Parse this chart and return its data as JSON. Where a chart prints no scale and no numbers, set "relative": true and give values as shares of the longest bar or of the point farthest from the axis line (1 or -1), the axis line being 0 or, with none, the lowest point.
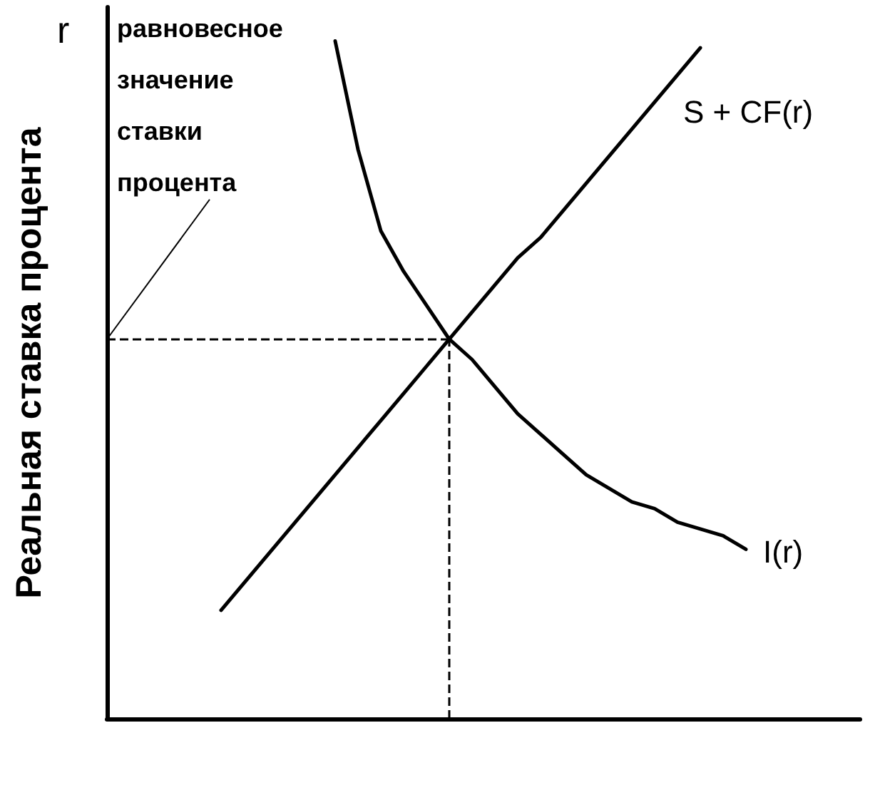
{
  "chart_data": {
    "type": "line",
    "relative": true,
    "ylabel": "Реальная ставка процента",
    "categories": [
      null,
      null,
      null,
      null,
      null,
      null,
      null,
      null,
      null,
      null,
      null,
      null,
      null,
      null,
      null,
      null,
      null,
      null,
      null,
      null,
      null,
      null,
      null,
      null,
      null,
      null,
      null,
      null,
      null,
      null,
      null,
      null,
      null,
      null
    ],
    "series": [
      {
        "name": "S + CF(r)",
        "color": "#000000",
        "values": [
          null,
          null,
          null,
          null,
          null,
          0.16,
          0.2,
          0.24,
          0.28,
          0.32,
          0.36,
          0.4,
          0.44,
          0.48,
          0.52,
          0.56,
          0.6,
          0.64,
          0.68,
          0.71,
          0.75,
          0.79,
          0.83,
          0.87,
          0.91,
          0.95,
          0.99,
          null,
          null,
          null,
          null,
          null,
          null,
          null
        ]
      },
      {
        "name": "I(r)",
        "color": "#000000",
        "values": [
          null,
          null,
          null,
          null,
          null,
          null,
          null,
          null,
          null,
          null,
          1.0,
          0.84,
          0.72,
          0.66,
          0.61,
          0.56,
          0.53,
          0.49,
          0.45,
          0.42,
          0.39,
          0.36,
          0.34,
          0.32,
          0.31,
          0.29,
          0.28,
          0.27,
          0.25,
          null,
          null,
          null,
          null,
          null
        ]
      }
    ],
    "ref_lines": [
      {
        "axis": "y",
        "value": 0.56,
        "line_style": "dashed"
      }
    ],
    "annotations": [
      "r",
      "равновесное значение ставки процента"
    ],
    "legend": false,
    "marker": "none",
    "line_style": "solid",
    "grid": false
  }
}
